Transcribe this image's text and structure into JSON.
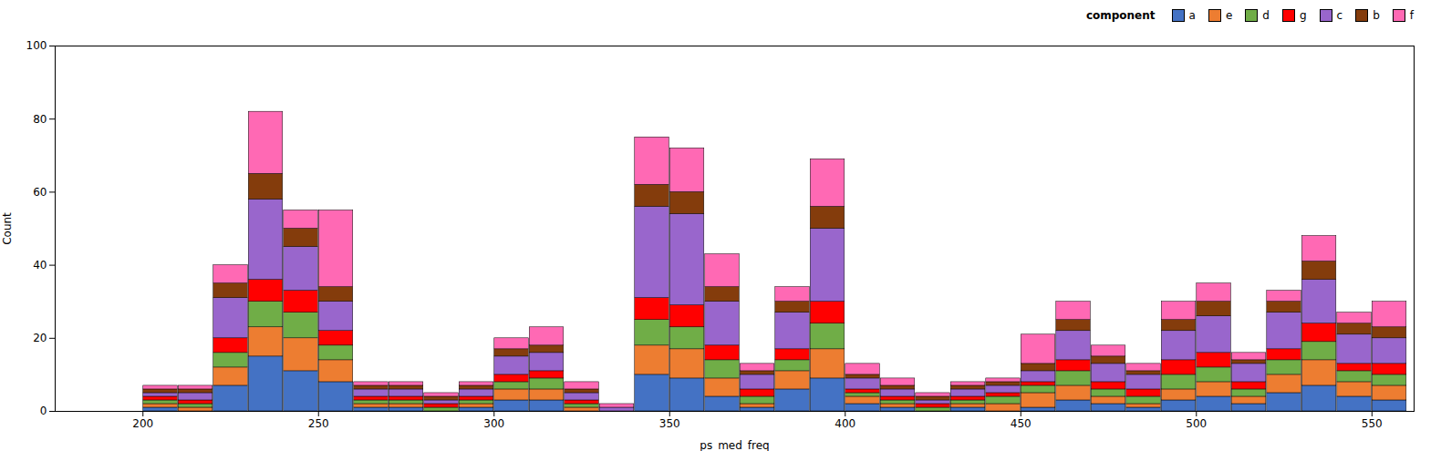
{
  "chart_data": {
    "type": "histogram",
    "xlabel": "ps_med_freq",
    "ylabel": "Count",
    "xlim": [
      175,
      562
    ],
    "xticks": [
      200,
      250,
      300,
      350,
      400,
      450,
      500,
      550
    ],
    "ylim": [
      0,
      100
    ],
    "yticks": [
      0,
      20,
      40,
      60,
      80,
      100
    ],
    "stacked": true,
    "legend": "upper right",
    "legend_title": "component",
    "bins": [
      180,
      190,
      200,
      210,
      220,
      230,
      240,
      250,
      260,
      270,
      280,
      290,
      300,
      310,
      320,
      330,
      340,
      350,
      360,
      370,
      380,
      390,
      400,
      410,
      420,
      430,
      440,
      450,
      460,
      470,
      480,
      490,
      500,
      510,
      520,
      530,
      540,
      550,
      560
    ],
    "series": [
      {
        "name": "a",
        "color": "#4472C4",
        "values": [
          0,
          0,
          1,
          0,
          7,
          15,
          11,
          8,
          1,
          1,
          0,
          1,
          3,
          3,
          0,
          0,
          10,
          9,
          4,
          1,
          6,
          9,
          2,
          1,
          0,
          1,
          0,
          1,
          3,
          2,
          1,
          3,
          4,
          2,
          5,
          7,
          4,
          3
        ]
      },
      {
        "name": "e",
        "color": "#ED7D31",
        "values": [
          0,
          0,
          1,
          1,
          5,
          8,
          9,
          6,
          1,
          1,
          0,
          1,
          3,
          3,
          1,
          0,
          8,
          8,
          5,
          1,
          5,
          8,
          2,
          1,
          0,
          1,
          2,
          4,
          4,
          2,
          1,
          3,
          4,
          2,
          5,
          7,
          4,
          4
        ]
      },
      {
        "name": "d",
        "color": "#70AD47",
        "values": [
          0,
          0,
          1,
          1,
          4,
          7,
          7,
          4,
          1,
          1,
          1,
          1,
          2,
          3,
          1,
          0,
          7,
          6,
          5,
          2,
          3,
          7,
          1,
          1,
          1,
          1,
          2,
          2,
          4,
          2,
          2,
          4,
          4,
          2,
          4,
          5,
          3,
          3
        ]
      },
      {
        "name": "g",
        "color": "#FF0000",
        "values": [
          0,
          0,
          1,
          1,
          4,
          6,
          6,
          4,
          1,
          1,
          1,
          1,
          2,
          2,
          1,
          0,
          6,
          6,
          4,
          2,
          3,
          6,
          1,
          1,
          1,
          1,
          1,
          1,
          3,
          2,
          2,
          4,
          4,
          2,
          3,
          5,
          2,
          3
        ]
      },
      {
        "name": "c",
        "color": "#9966CC",
        "values": [
          0,
          0,
          1,
          2,
          11,
          22,
          12,
          8,
          2,
          2,
          1,
          2,
          5,
          5,
          2,
          1,
          25,
          25,
          12,
          4,
          10,
          20,
          3,
          2,
          1,
          2,
          2,
          3,
          8,
          5,
          4,
          8,
          10,
          5,
          10,
          12,
          8,
          7
        ]
      },
      {
        "name": "b",
        "color": "#843C0C",
        "values": [
          0,
          0,
          1,
          1,
          4,
          7,
          5,
          4,
          1,
          1,
          1,
          1,
          2,
          2,
          1,
          0,
          6,
          6,
          4,
          1,
          3,
          6,
          1,
          1,
          1,
          1,
          1,
          2,
          3,
          2,
          1,
          3,
          4,
          1,
          3,
          5,
          3,
          3
        ]
      },
      {
        "name": "f",
        "color": "#FF69B4",
        "values": [
          0,
          0,
          1,
          1,
          5,
          17,
          5,
          21,
          1,
          1,
          1,
          1,
          3,
          5,
          2,
          1,
          13,
          12,
          9,
          2,
          4,
          13,
          3,
          2,
          1,
          1,
          1,
          8,
          5,
          3,
          2,
          5,
          5,
          2,
          3,
          7,
          3,
          7
        ]
      }
    ]
  }
}
